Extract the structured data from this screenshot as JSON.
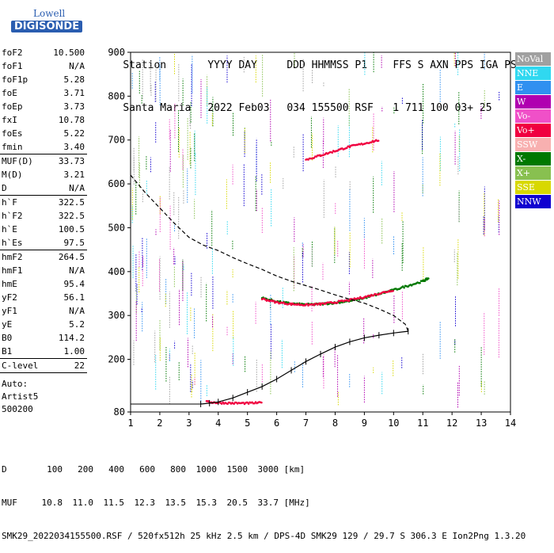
{
  "logo": {
    "line1": "Lowell",
    "line2": "DIGISONDE"
  },
  "header": {
    "labels": [
      "Station",
      "YYYY DAY",
      "DDD HHMMSS P1",
      "FFS S AXN PPS IGA PS"
    ],
    "values": [
      "Santa Maria",
      "2022 Feb03",
      "034 155500 RSF",
      "1 711 100 03+ 25"
    ]
  },
  "params": {
    "group1": [
      {
        "k": "foF2",
        "v": "10.500"
      },
      {
        "k": "foF1",
        "v": "N/A"
      },
      {
        "k": "foF1p",
        "v": "5.28"
      },
      {
        "k": "foE",
        "v": "3.71"
      },
      {
        "k": "foEp",
        "v": "3.73"
      },
      {
        "k": "fxI",
        "v": "10.78"
      },
      {
        "k": "foEs",
        "v": "5.22"
      },
      {
        "k": "fmin",
        "v": "3.40"
      }
    ],
    "group2": [
      {
        "k": "MUF(D)",
        "v": "33.73"
      },
      {
        "k": "M(D)",
        "v": "3.21"
      },
      {
        "k": "D",
        "v": "N/A"
      }
    ],
    "group3": [
      {
        "k": "h`F",
        "v": "322.5"
      },
      {
        "k": "h`F2",
        "v": "322.5"
      },
      {
        "k": "h`E",
        "v": "100.5"
      },
      {
        "k": "h`Es",
        "v": "97.5"
      }
    ],
    "group4": [
      {
        "k": "hmF2",
        "v": "264.5"
      },
      {
        "k": "hmF1",
        "v": "N/A"
      },
      {
        "k": "hmE",
        "v": "95.4"
      },
      {
        "k": "yF2",
        "v": "56.1"
      },
      {
        "k": "yF1",
        "v": "N/A"
      },
      {
        "k": "yE",
        "v": "5.2"
      },
      {
        "k": "B0",
        "v": "114.2"
      },
      {
        "k": "B1",
        "v": "1.00"
      }
    ],
    "group5": [
      {
        "k": "C-level",
        "v": "22"
      }
    ],
    "notes": [
      "Auto:",
      "Artist5",
      "500200"
    ]
  },
  "legend": [
    {
      "label": "NoVal",
      "color": "#a0a0a0"
    },
    {
      "label": "NNE",
      "color": "#30d8f0"
    },
    {
      "label": "E",
      "color": "#3090f0"
    },
    {
      "label": "W",
      "color": "#b000b0"
    },
    {
      "label": "Vo-",
      "color": "#f050c8"
    },
    {
      "label": "Vo+",
      "color": "#f00040"
    },
    {
      "label": "SSW",
      "color": "#f8b0b0"
    },
    {
      "label": "X-",
      "color": "#007800"
    },
    {
      "label": "X+",
      "color": "#88c050"
    },
    {
      "label": "SSE",
      "color": "#d8d800"
    },
    {
      "label": "NNW",
      "color": "#1000d0"
    }
  ],
  "footer": {
    "line1_label": "D",
    "line1_values": [
      "100",
      "200",
      "400",
      "600",
      "800",
      "1000",
      "1500",
      "3000"
    ],
    "line1_unit": "[km]",
    "line2_label": "MUF",
    "line2_values": [
      "10.8",
      "11.0",
      "11.5",
      "12.3",
      "13.5",
      "15.3",
      "20.5",
      "33.7"
    ],
    "line2_unit": "[MHz]",
    "line3": "SMK29_2022034155500.RSF / 520fx512h 25 kHz 2.5 km / DPS-4D SMK29 129 / 29.7 S 306.3 E Ion2Png 1.3.20"
  },
  "chart_data": {
    "type": "scatter",
    "xlim": [
      1,
      14
    ],
    "ylim": [
      80,
      900
    ],
    "x_ticks": [
      "1",
      "2",
      "3",
      "4",
      "5",
      "6",
      "7",
      "8",
      "9",
      "10",
      "11",
      "12",
      "13",
      "14"
    ],
    "y_ticks": [
      "80",
      "200",
      "300",
      "400",
      "500",
      "600",
      "700",
      "800",
      "900"
    ],
    "grid": false,
    "series": [
      {
        "color": "#7a7a7a",
        "points": [
          [
            3.4,
            98
          ],
          [
            3.7,
            100
          ],
          [
            4.0,
            103
          ],
          [
            4.5,
            112
          ],
          [
            5.0,
            125
          ],
          [
            5.5,
            138
          ],
          [
            6.0,
            155
          ],
          [
            6.5,
            175
          ],
          [
            7.0,
            195
          ],
          [
            7.5,
            212
          ],
          [
            8.0,
            228
          ],
          [
            8.5,
            240
          ],
          [
            9.0,
            249
          ],
          [
            9.5,
            255
          ],
          [
            10.0,
            260
          ],
          [
            10.5,
            264
          ]
        ]
      },
      {
        "color": "#7a7a7a",
        "points": [
          [
            1.0,
            620
          ],
          [
            1.5,
            580
          ],
          [
            2.0,
            545
          ],
          [
            2.5,
            510
          ],
          [
            3.0,
            478
          ],
          [
            3.5,
            460
          ],
          [
            4.0,
            448
          ],
          [
            4.5,
            432
          ],
          [
            5.0,
            418
          ],
          [
            5.5,
            405
          ],
          [
            6.0,
            390
          ],
          [
            6.5,
            378
          ],
          [
            7.0,
            368
          ],
          [
            7.5,
            358
          ],
          [
            8.0,
            347
          ],
          [
            8.5,
            337
          ],
          [
            9.0,
            328
          ],
          [
            9.5,
            315
          ],
          [
            10.0,
            300
          ],
          [
            10.4,
            280
          ],
          [
            10.5,
            264
          ]
        ]
      },
      {
        "color": "#007800",
        "points": [
          [
            5.5,
            340
          ],
          [
            6.0,
            332
          ],
          [
            6.5,
            327
          ],
          [
            7.0,
            325
          ],
          [
            7.5,
            326
          ],
          [
            8.0,
            329
          ],
          [
            8.5,
            333
          ],
          [
            9.0,
            340
          ],
          [
            9.5,
            349
          ],
          [
            10.0,
            358
          ],
          [
            10.5,
            368
          ],
          [
            11.0,
            378
          ],
          [
            11.2,
            385
          ]
        ]
      },
      {
        "color": "#f00040",
        "points": [
          [
            5.5,
            338
          ],
          [
            6.0,
            330
          ],
          [
            6.5,
            326
          ],
          [
            7.0,
            324
          ],
          [
            7.5,
            326
          ],
          [
            8.0,
            330
          ],
          [
            8.5,
            335
          ],
          [
            9.0,
            342
          ],
          [
            9.5,
            350
          ],
          [
            10.0,
            358
          ]
        ]
      },
      {
        "color": "#f00040",
        "points": [
          [
            7.0,
            655
          ],
          [
            7.5,
            665
          ],
          [
            8.0,
            675
          ],
          [
            8.5,
            685
          ],
          [
            9.0,
            692
          ],
          [
            9.5,
            700
          ]
        ]
      },
      {
        "color": "#f00040",
        "points": [
          [
            3.6,
            103
          ],
          [
            4.0,
            101
          ],
          [
            4.5,
            100
          ],
          [
            5.0,
            100
          ],
          [
            5.5,
            101
          ]
        ]
      }
    ]
  }
}
